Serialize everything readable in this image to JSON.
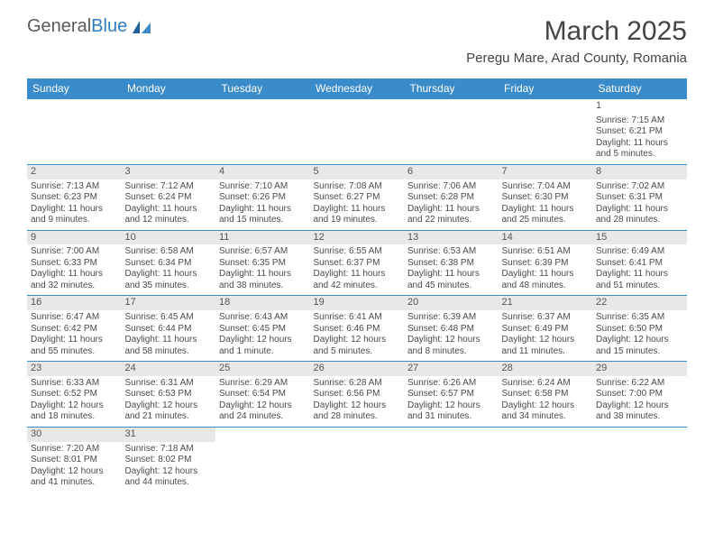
{
  "logo": {
    "text1": "General",
    "text2": "Blue"
  },
  "title": "March 2025",
  "location": "Peregu Mare, Arad County, Romania",
  "colors": {
    "header_bg": "#3a8bc9",
    "header_text": "#ffffff",
    "border": "#3a8bc9",
    "shade": "#e8e8e8",
    "body_text": "#4a4a4a",
    "logo_gray": "#5a5a5a",
    "logo_blue": "#2f7bbf"
  },
  "weekdays": [
    "Sunday",
    "Monday",
    "Tuesday",
    "Wednesday",
    "Thursday",
    "Friday",
    "Saturday"
  ],
  "weeks": [
    [
      null,
      null,
      null,
      null,
      null,
      null,
      {
        "d": 1,
        "sr": "7:15 AM",
        "ss": "6:21 PM",
        "dl": "11 hours and 5 minutes."
      }
    ],
    [
      {
        "d": 2,
        "sr": "7:13 AM",
        "ss": "6:23 PM",
        "dl": "11 hours and 9 minutes."
      },
      {
        "d": 3,
        "sr": "7:12 AM",
        "ss": "6:24 PM",
        "dl": "11 hours and 12 minutes."
      },
      {
        "d": 4,
        "sr": "7:10 AM",
        "ss": "6:26 PM",
        "dl": "11 hours and 15 minutes."
      },
      {
        "d": 5,
        "sr": "7:08 AM",
        "ss": "6:27 PM",
        "dl": "11 hours and 19 minutes."
      },
      {
        "d": 6,
        "sr": "7:06 AM",
        "ss": "6:28 PM",
        "dl": "11 hours and 22 minutes."
      },
      {
        "d": 7,
        "sr": "7:04 AM",
        "ss": "6:30 PM",
        "dl": "11 hours and 25 minutes."
      },
      {
        "d": 8,
        "sr": "7:02 AM",
        "ss": "6:31 PM",
        "dl": "11 hours and 28 minutes."
      }
    ],
    [
      {
        "d": 9,
        "sr": "7:00 AM",
        "ss": "6:33 PM",
        "dl": "11 hours and 32 minutes."
      },
      {
        "d": 10,
        "sr": "6:58 AM",
        "ss": "6:34 PM",
        "dl": "11 hours and 35 minutes."
      },
      {
        "d": 11,
        "sr": "6:57 AM",
        "ss": "6:35 PM",
        "dl": "11 hours and 38 minutes."
      },
      {
        "d": 12,
        "sr": "6:55 AM",
        "ss": "6:37 PM",
        "dl": "11 hours and 42 minutes."
      },
      {
        "d": 13,
        "sr": "6:53 AM",
        "ss": "6:38 PM",
        "dl": "11 hours and 45 minutes."
      },
      {
        "d": 14,
        "sr": "6:51 AM",
        "ss": "6:39 PM",
        "dl": "11 hours and 48 minutes."
      },
      {
        "d": 15,
        "sr": "6:49 AM",
        "ss": "6:41 PM",
        "dl": "11 hours and 51 minutes."
      }
    ],
    [
      {
        "d": 16,
        "sr": "6:47 AM",
        "ss": "6:42 PM",
        "dl": "11 hours and 55 minutes."
      },
      {
        "d": 17,
        "sr": "6:45 AM",
        "ss": "6:44 PM",
        "dl": "11 hours and 58 minutes."
      },
      {
        "d": 18,
        "sr": "6:43 AM",
        "ss": "6:45 PM",
        "dl": "12 hours and 1 minute."
      },
      {
        "d": 19,
        "sr": "6:41 AM",
        "ss": "6:46 PM",
        "dl": "12 hours and 5 minutes."
      },
      {
        "d": 20,
        "sr": "6:39 AM",
        "ss": "6:48 PM",
        "dl": "12 hours and 8 minutes."
      },
      {
        "d": 21,
        "sr": "6:37 AM",
        "ss": "6:49 PM",
        "dl": "12 hours and 11 minutes."
      },
      {
        "d": 22,
        "sr": "6:35 AM",
        "ss": "6:50 PM",
        "dl": "12 hours and 15 minutes."
      }
    ],
    [
      {
        "d": 23,
        "sr": "6:33 AM",
        "ss": "6:52 PM",
        "dl": "12 hours and 18 minutes."
      },
      {
        "d": 24,
        "sr": "6:31 AM",
        "ss": "6:53 PM",
        "dl": "12 hours and 21 minutes."
      },
      {
        "d": 25,
        "sr": "6:29 AM",
        "ss": "6:54 PM",
        "dl": "12 hours and 24 minutes."
      },
      {
        "d": 26,
        "sr": "6:28 AM",
        "ss": "6:56 PM",
        "dl": "12 hours and 28 minutes."
      },
      {
        "d": 27,
        "sr": "6:26 AM",
        "ss": "6:57 PM",
        "dl": "12 hours and 31 minutes."
      },
      {
        "d": 28,
        "sr": "6:24 AM",
        "ss": "6:58 PM",
        "dl": "12 hours and 34 minutes."
      },
      {
        "d": 29,
        "sr": "6:22 AM",
        "ss": "7:00 PM",
        "dl": "12 hours and 38 minutes."
      }
    ],
    [
      {
        "d": 30,
        "sr": "7:20 AM",
        "ss": "8:01 PM",
        "dl": "12 hours and 41 minutes."
      },
      {
        "d": 31,
        "sr": "7:18 AM",
        "ss": "8:02 PM",
        "dl": "12 hours and 44 minutes."
      },
      null,
      null,
      null,
      null,
      null
    ]
  ],
  "labels": {
    "sunrise": "Sunrise:",
    "sunset": "Sunset:",
    "daylight": "Daylight:"
  }
}
